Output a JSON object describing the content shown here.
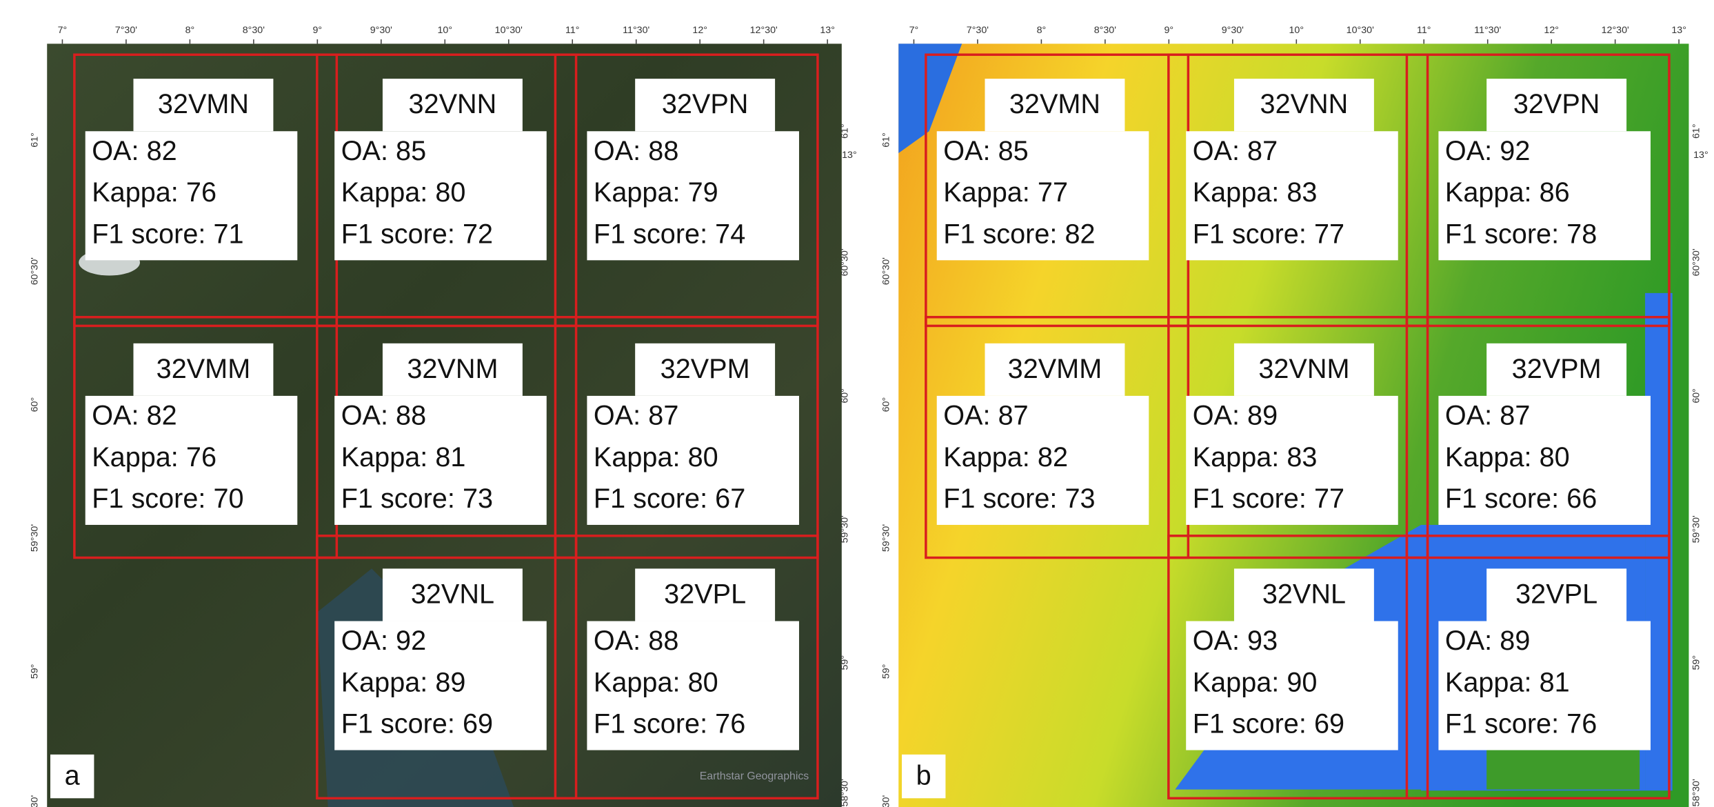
{
  "metric_labels": [
    "OA:",
    "Kappa:",
    "F1 score:"
  ],
  "panels": [
    {
      "letter": "a",
      "top_labels": [
        "7°",
        "7°30'",
        "8°",
        "8°30'",
        "9°",
        "9°30'",
        "10°",
        "10°30'",
        "11°",
        "11°30'",
        "12°",
        "12°30'",
        "13°"
      ],
      "left_labels": [
        "61°",
        "60°30'",
        "60°",
        "59°30'",
        "59°",
        "30'"
      ],
      "right_labels": [
        "61°",
        "60°30'",
        "60°",
        "59°30'",
        "59°",
        "58°30'"
      ],
      "corner_label": "13°",
      "watermark": "Earthstar Geographics",
      "tiles": [
        {
          "name": "32VMN",
          "values": [
            82,
            76,
            71
          ]
        },
        {
          "name": "32VNN",
          "values": [
            85,
            80,
            72
          ]
        },
        {
          "name": "32VPN",
          "values": [
            88,
            79,
            74
          ]
        },
        {
          "name": "32VMM",
          "values": [
            82,
            76,
            70
          ]
        },
        {
          "name": "32VNM",
          "values": [
            88,
            81,
            73
          ]
        },
        {
          "name": "32VPM",
          "values": [
            87,
            80,
            67
          ]
        },
        {
          "name": "32VNL",
          "values": [
            92,
            89,
            69
          ]
        },
        {
          "name": "32VPL",
          "values": [
            88,
            80,
            76
          ]
        }
      ]
    },
    {
      "letter": "b",
      "top_labels": [
        "7°",
        "7°30'",
        "8°",
        "8°30'",
        "9°",
        "9°30'",
        "10°",
        "10°30'",
        "11°",
        "11°30'",
        "12°",
        "12°30'",
        "13°"
      ],
      "left_labels": [
        "61°",
        "60°30'",
        "60°",
        "59°30'",
        "59°",
        "30'"
      ],
      "right_labels": [
        "61°",
        "60°30'",
        "60°",
        "59°30'",
        "59°",
        "58°30'"
      ],
      "corner_label": "13°",
      "tiles": [
        {
          "name": "32VMN",
          "values": [
            85,
            77,
            82
          ]
        },
        {
          "name": "32VNN",
          "values": [
            87,
            83,
            77
          ]
        },
        {
          "name": "32VPN",
          "values": [
            92,
            86,
            78
          ]
        },
        {
          "name": "32VMM",
          "values": [
            87,
            82,
            73
          ]
        },
        {
          "name": "32VNM",
          "values": [
            89,
            83,
            77
          ]
        },
        {
          "name": "32VPM",
          "values": [
            87,
            80,
            66
          ]
        },
        {
          "name": "32VNL",
          "values": [
            93,
            90,
            69
          ]
        },
        {
          "name": "32VPL",
          "values": [
            89,
            81,
            76
          ]
        }
      ]
    }
  ]
}
